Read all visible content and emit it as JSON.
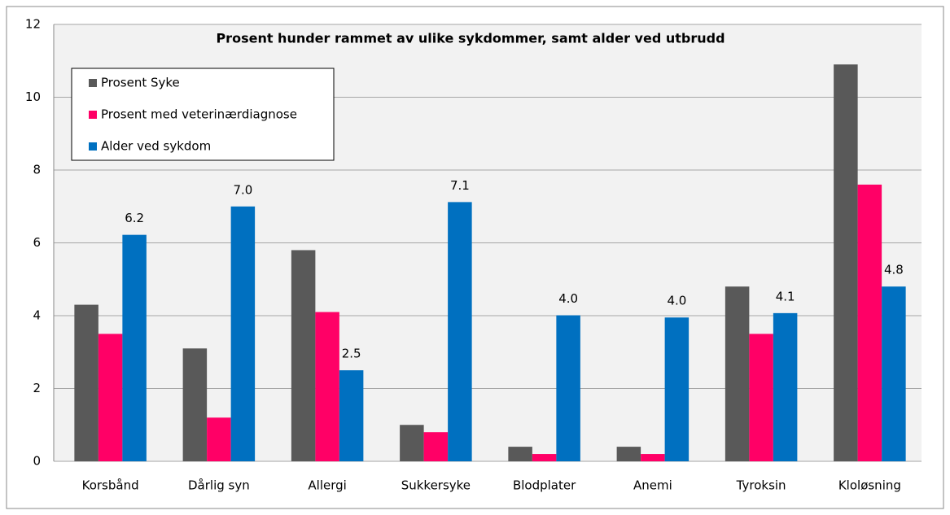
{
  "chart_data": {
    "type": "bar",
    "title": "Prosent hunder rammet av ulike sykdommer, samt alder ved utbrudd",
    "categories": [
      "Korsbånd",
      "Dårlig syn",
      "Allergi",
      "Sukkersyke",
      "Blodplater",
      "Anemi",
      "Tyroksin",
      "Kloløsning"
    ],
    "series": [
      {
        "name": "Prosent Syke",
        "color": "#595959",
        "values": [
          4.3,
          3.1,
          5.8,
          1.0,
          0.4,
          0.4,
          4.8,
          10.9
        ]
      },
      {
        "name": "Prosent med veterinærdiagnose",
        "color": "#ff0066",
        "values": [
          3.5,
          1.2,
          4.1,
          0.8,
          0.2,
          0.2,
          3.5,
          7.6
        ]
      },
      {
        "name": "Alder ved sykdom",
        "color": "#0070c0",
        "values": [
          6.22,
          7.0,
          2.5,
          7.12,
          4.01,
          3.95,
          4.07,
          4.8
        ],
        "value_labels": [
          "6.2",
          "7.0",
          "2.5",
          "7.1",
          "4.0",
          "4.0",
          "4.1",
          "4.8"
        ]
      }
    ],
    "ylim": [
      0,
      12
    ],
    "yticks": [
      0,
      2,
      4,
      6,
      8,
      10,
      12
    ],
    "grid": true,
    "legend": "top-left"
  }
}
